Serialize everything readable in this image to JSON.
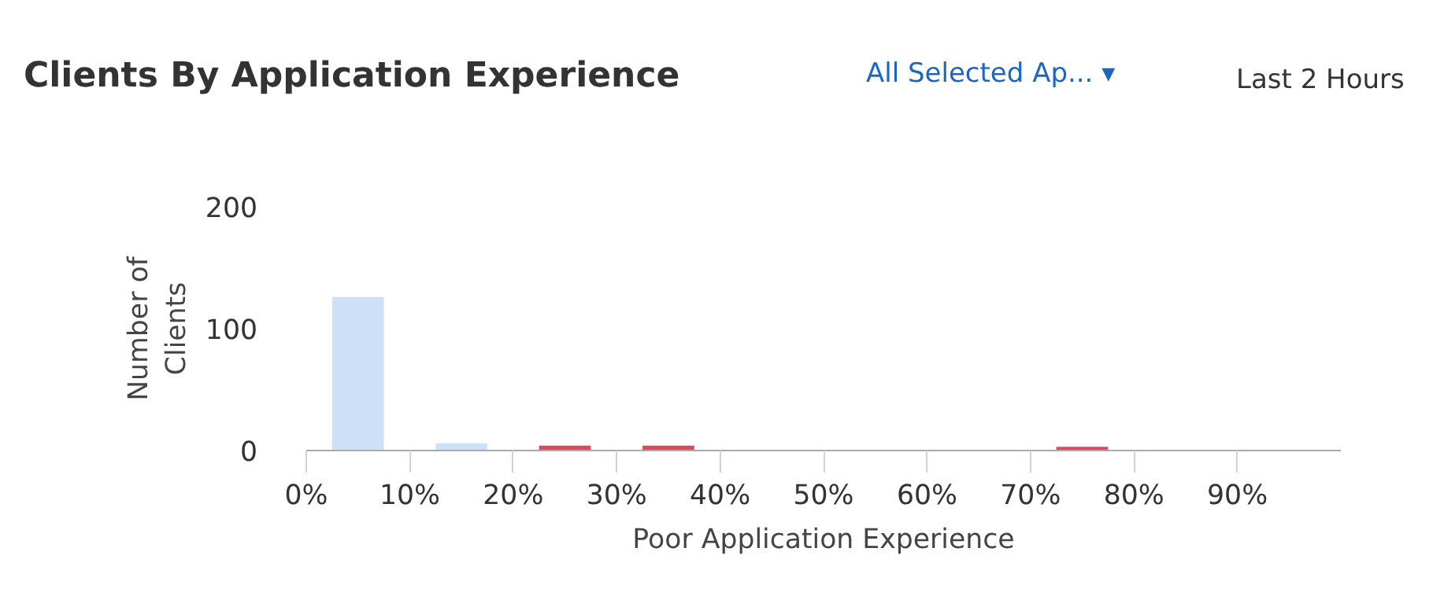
{
  "chart_data": {
    "type": "histogram",
    "title": "Clients By Application Experience",
    "xlabel": "Poor Application Experience",
    "ylabel": "Number of Clients",
    "annotations": [
      "All Selected Ap... ▾",
      "Last 2 Hours"
    ],
    "bins": [
      0,
      10,
      20,
      30,
      40,
      50,
      60,
      70,
      80,
      90,
      100
    ],
    "values": [
      126,
      6,
      4,
      4,
      0,
      0,
      0,
      3,
      0,
      0
    ],
    "colors": [
      "#cce0f8",
      "#cce0f8",
      "#e0475a",
      "#e0475a",
      "#cce0f8",
      "#cce0f8",
      "#cce0f8",
      "#e0475a",
      "#cce0f8",
      "#cce0f8"
    ],
    "xlim": [
      0,
      100
    ],
    "ylim": [
      0,
      200
    ],
    "xticks": [
      {
        "value": 0,
        "label": "0%"
      },
      {
        "value": 10,
        "label": "10%"
      },
      {
        "value": 20,
        "label": "20%"
      },
      {
        "value": 30,
        "label": "30%"
      },
      {
        "value": 40,
        "label": "40%"
      },
      {
        "value": 50,
        "label": "50%"
      },
      {
        "value": 60,
        "label": "60%"
      },
      {
        "value": 70,
        "label": "70%"
      },
      {
        "value": 80,
        "label": "80%"
      },
      {
        "value": 90,
        "label": "90%"
      }
    ],
    "yticks": [
      0,
      100,
      200
    ],
    "grid": false
  }
}
